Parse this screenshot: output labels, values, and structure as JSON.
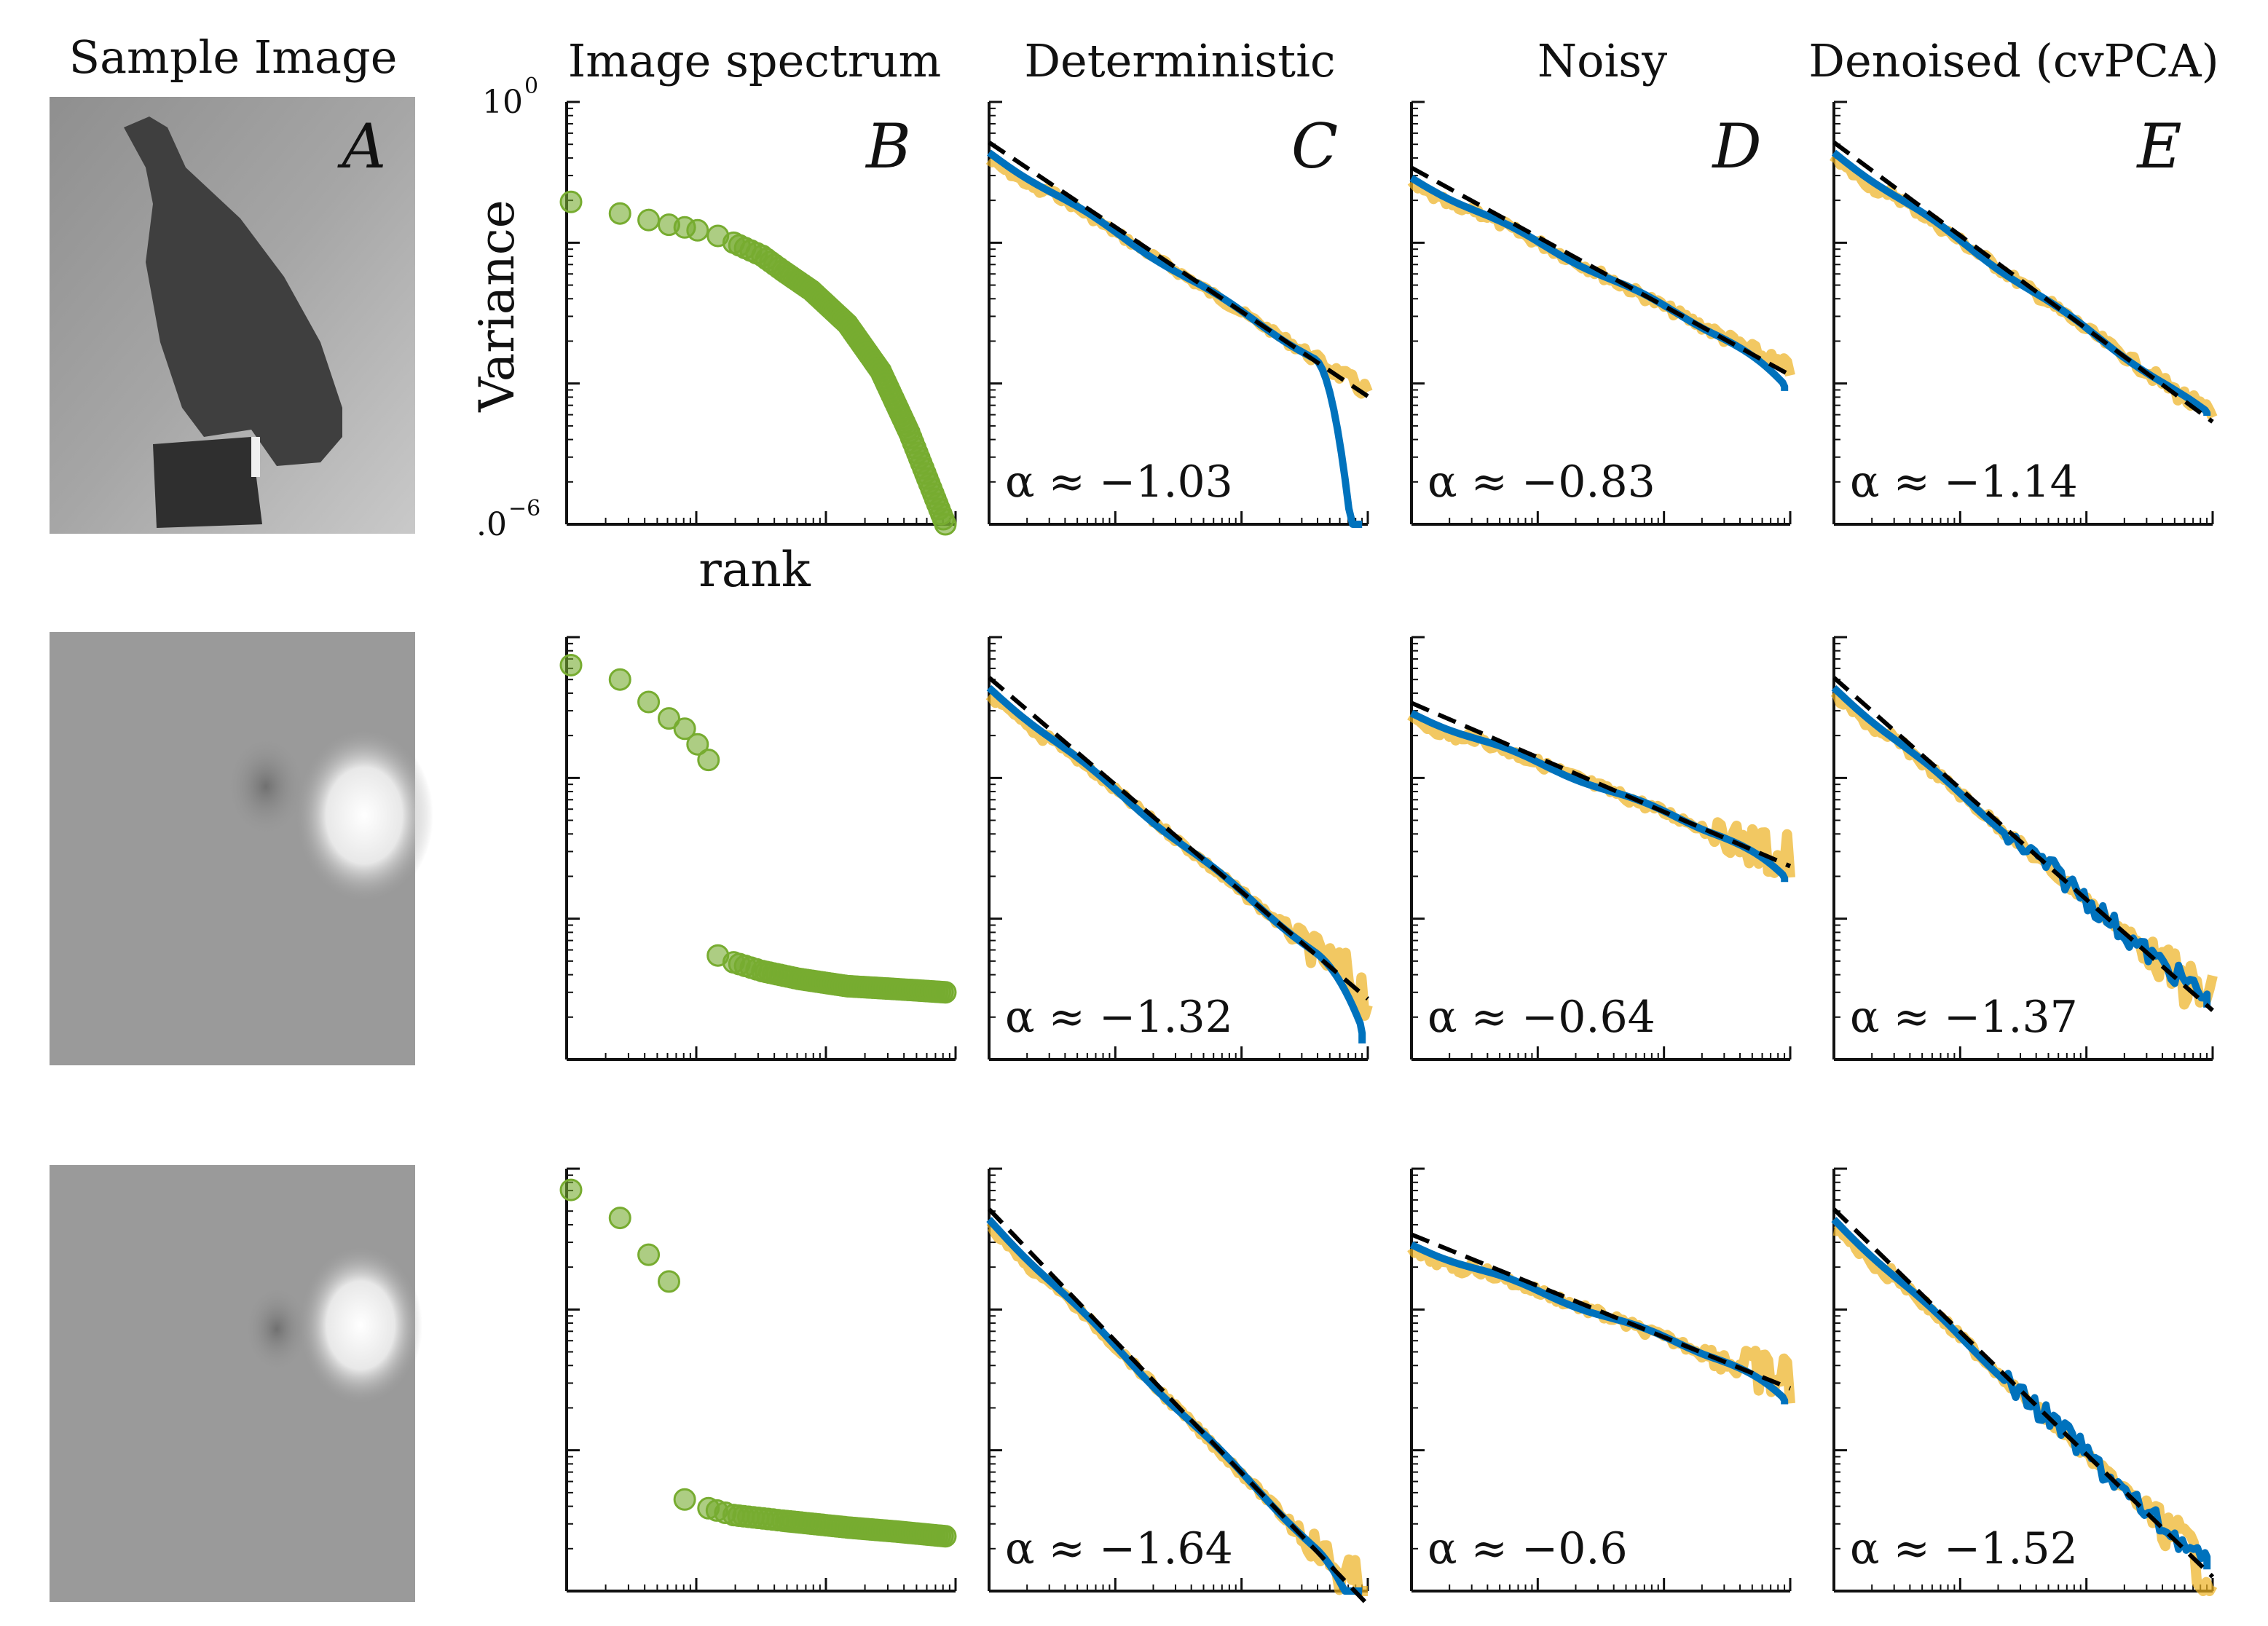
{
  "figure": {
    "column_titles": [
      "Sample Image",
      "Image spectrum",
      "Deterministic",
      "Noisy",
      "Denoised (cvPCA)"
    ],
    "panel_letters": [
      "A",
      "B",
      "C",
      "D",
      "E"
    ],
    "colors": {
      "green": "#77ac30",
      "blue": "#0072bd",
      "orange": "#edb120",
      "fit": "#000000"
    }
  },
  "chart_data": {
    "type": "scatter",
    "grid": false,
    "xscale": "log",
    "yscale": "log",
    "ylabel": "Variance",
    "xlabel": "rank",
    "ylim_labels": [
      "10",
      "0",
      "−6"
    ],
    "rows": [
      {
        "image": "bird",
        "spectrum_points": [
          [
            1,
            0.038
          ],
          [
            2,
            0.026
          ],
          [
            3,
            0.021
          ],
          [
            4,
            0.018
          ],
          [
            5,
            0.0165
          ],
          [
            6,
            0.015
          ],
          [
            8,
            0.0125
          ],
          [
            10,
            0.01
          ],
          [
            15,
            0.0065
          ],
          [
            20,
            0.004
          ],
          [
            30,
            0.0021
          ],
          [
            50,
            0.0007
          ],
          [
            80,
            0.00015
          ],
          [
            120,
            2e-05
          ],
          [
            200,
            1e-06
          ]
        ],
        "alphas": {
          "deterministic": "−1.03",
          "noisy": "−0.83",
          "denoised": "−1.14"
        },
        "fits": {
          "deterministic": -1.03,
          "noisy": -0.83,
          "denoised": -1.14
        }
      },
      {
        "image": "blob1",
        "spectrum_points": [
          [
            1,
            0.4
          ],
          [
            2,
            0.25
          ],
          [
            3,
            0.12
          ],
          [
            4,
            0.07
          ],
          [
            5,
            0.05
          ],
          [
            6,
            0.03
          ],
          [
            7,
            0.018
          ],
          [
            8,
            3e-05
          ],
          [
            10,
            2.4e-05
          ],
          [
            15,
            1.8e-05
          ],
          [
            25,
            1.4e-05
          ],
          [
            50,
            1.1e-05
          ],
          [
            100,
            1e-05
          ],
          [
            200,
            9e-06
          ]
        ],
        "alphas": {
          "deterministic": "−1.32",
          "noisy": "−0.64",
          "denoised": "−1.37"
        },
        "fits": {
          "deterministic": -1.32,
          "noisy": -0.64,
          "denoised": -1.37
        }
      },
      {
        "image": "blob2",
        "spectrum_points": [
          [
            1,
            0.5
          ],
          [
            2,
            0.2
          ],
          [
            3,
            0.06
          ],
          [
            4,
            0.025
          ],
          [
            5,
            2e-05
          ],
          [
            7,
            1.5e-05
          ],
          [
            10,
            1.2e-05
          ],
          [
            20,
            1e-05
          ],
          [
            50,
            8e-06
          ],
          [
            100,
            7e-06
          ],
          [
            200,
            6e-06
          ]
        ],
        "alphas": {
          "deterministic": "−1.64",
          "noisy": "−0.6",
          "denoised": "−1.52"
        },
        "fits": {
          "deterministic": -1.64,
          "noisy": -0.6,
          "denoised": -1.52
        }
      }
    ]
  }
}
